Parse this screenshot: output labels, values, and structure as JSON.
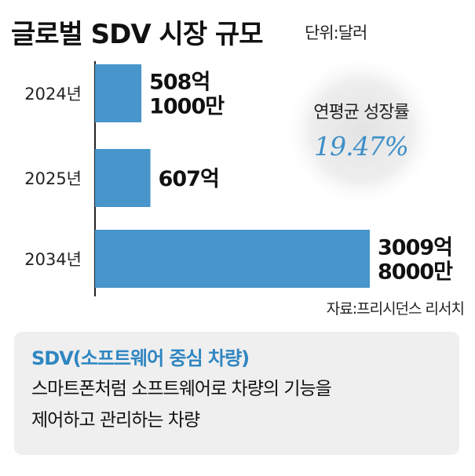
{
  "title": "글로벌 SDV 시장 규모",
  "unit": "단위:달러",
  "chart_data": {
    "type": "bar",
    "orientation": "horizontal",
    "title": "글로벌 SDV 시장 규모",
    "unit_note": "단위:달러",
    "categories": [
      "2024년",
      "2025년",
      "2034년"
    ],
    "values": [
      50810000000,
      60700000000,
      300980000000
    ],
    "data_labels": [
      [
        "508억",
        "1000만"
      ],
      [
        "607억"
      ],
      [
        "3009억",
        "8000만"
      ]
    ],
    "xlim": [
      0,
      300980000000
    ],
    "bar_color": "#4795cb",
    "grid": false,
    "legend": "none",
    "annotation": {
      "label": "연평균 성장률",
      "value": "19.47%"
    }
  },
  "source": "자료:프리시던스 리서치",
  "info": {
    "heading": "SDV(소프트웨어 중심 차량)",
    "lines": [
      "스마트폰처럼 소프트웨어로 차량의 기능을",
      "제어하고 관리하는 차량"
    ]
  },
  "colors": {
    "bar": "#4795cb",
    "accent": "#2f86c1",
    "cagr": "#3d8fc7",
    "info_bg": "#efefef"
  }
}
